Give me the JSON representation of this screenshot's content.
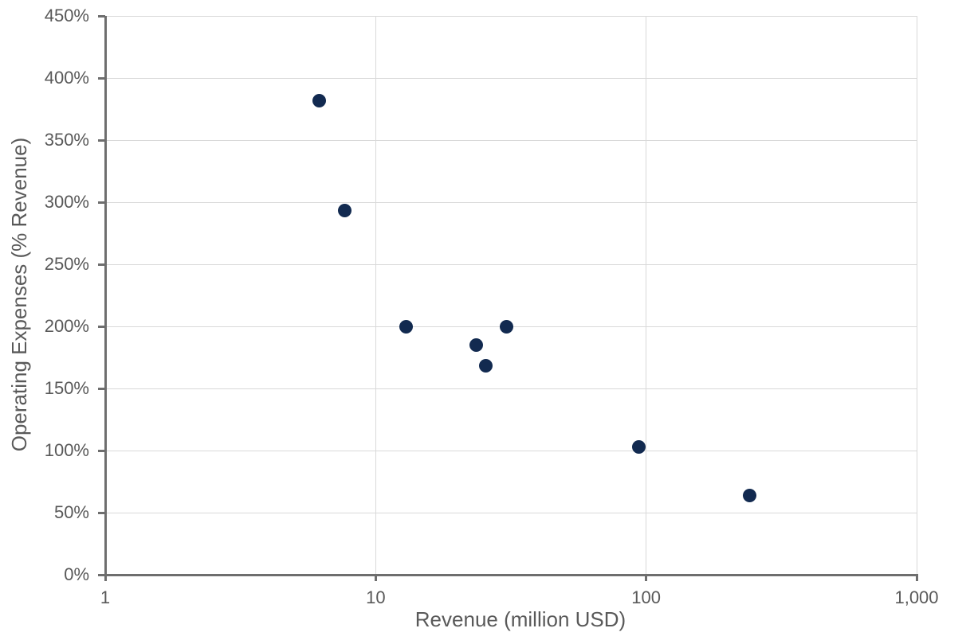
{
  "chart_data": {
    "type": "scatter",
    "title": "",
    "xlabel": "Revenue (million USD)",
    "ylabel": "Operating Expenses (% Revenue)",
    "x_scale": "log",
    "y_scale": "linear",
    "xlim": [
      1,
      1000
    ],
    "ylim": [
      0,
      450
    ],
    "y_unit": "%",
    "x_unit": "million USD",
    "grid": "horizontal gridlines every 50%, vertical gridlines at each decade",
    "legend": "none",
    "x_ticks": [
      {
        "value": 1,
        "label": "1"
      },
      {
        "value": 10,
        "label": "10"
      },
      {
        "value": 100,
        "label": "100"
      },
      {
        "value": 1000,
        "label": "1,000"
      }
    ],
    "y_ticks": [
      {
        "value": 0,
        "label": "0%"
      },
      {
        "value": 50,
        "label": "50%"
      },
      {
        "value": 100,
        "label": "100%"
      },
      {
        "value": 150,
        "label": "150%"
      },
      {
        "value": 200,
        "label": "200%"
      },
      {
        "value": 250,
        "label": "250%"
      },
      {
        "value": 300,
        "label": "300%"
      },
      {
        "value": 350,
        "label": "350%"
      },
      {
        "value": 400,
        "label": "400%"
      },
      {
        "value": 450,
        "label": "450%"
      }
    ],
    "points": [
      {
        "x": 6.2,
        "y": 382
      },
      {
        "x": 7.7,
        "y": 293
      },
      {
        "x": 13,
        "y": 200
      },
      {
        "x": 23.6,
        "y": 185
      },
      {
        "x": 25.6,
        "y": 168
      },
      {
        "x": 30.4,
        "y": 200
      },
      {
        "x": 94,
        "y": 103
      },
      {
        "x": 242,
        "y": 64
      }
    ],
    "colors": {
      "marker": "#122a50",
      "gridline": "#d9d9d9",
      "axis": "#6e6e6e",
      "text": "#595959",
      "background": "#ffffff"
    }
  }
}
